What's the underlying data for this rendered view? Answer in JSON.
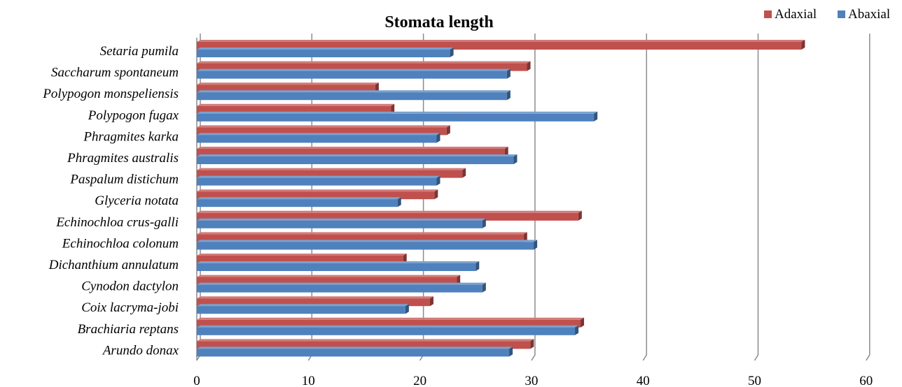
{
  "chart_data": {
    "type": "bar",
    "orientation": "horizontal",
    "title": "Stomata length",
    "xlabel": "",
    "ylabel": "",
    "xlim": [
      0,
      60
    ],
    "ticks": [
      "0",
      "10",
      "20",
      "30",
      "40",
      "50",
      "60"
    ],
    "grid": true,
    "legend_position": "top-right",
    "categories": [
      "Setaria pumila",
      "Saccharum spontaneum",
      "Polypogon monspeliensis",
      "Polypogon fugax",
      "Phragmites karka",
      "Phragmites australis",
      "Paspalum distichum",
      "Glyceria notata",
      "Echinochloa crus-galli",
      "Echinochloa colonum",
      "Dichanthium annulatum",
      "Cynodon dactylon",
      "Coix lacryma-jobi",
      "Brachiaria reptans",
      "Arundo donax"
    ],
    "series": [
      {
        "name": "Adaxial",
        "color": "#c0504d",
        "values": [
          54.2,
          29.6,
          16.0,
          17.4,
          22.4,
          27.6,
          23.8,
          21.3,
          34.2,
          29.3,
          18.5,
          23.3,
          20.9,
          34.4,
          29.9
        ]
      },
      {
        "name": "Abaxial",
        "color": "#4f81bd",
        "values": [
          22.7,
          27.8,
          27.8,
          35.6,
          21.5,
          28.4,
          21.5,
          18.0,
          25.6,
          30.2,
          25.0,
          25.6,
          18.7,
          33.9,
          28.0
        ]
      }
    ]
  }
}
